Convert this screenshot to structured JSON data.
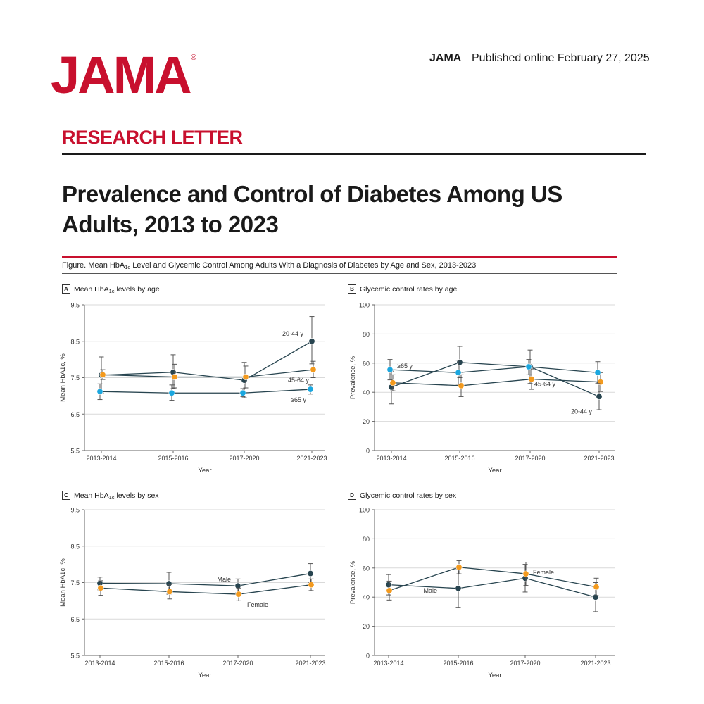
{
  "header": {
    "logo": "JAMA",
    "logo_mark": "®",
    "journal": "JAMA",
    "published": "Published online February 27, 2025"
  },
  "section_label": "RESEARCH LETTER",
  "article_title": "Prevalence and Control of Diabetes Among US Adults, 2013 to 2023",
  "figure_caption": {
    "prefix": "Figure. Mean HbA",
    "sub": "1c",
    "suffix": " Level and Glycemic Control Among Adults With a Diagnosis of Diabetes by Age and Sex, 2013-2023"
  },
  "colors": {
    "dark_teal": "#27444f",
    "blue": "#1ba7df",
    "orange": "#f39a1e",
    "axis": "#666666",
    "grid": "#d9d9d9"
  },
  "chart_data": [
    {
      "panel": "A",
      "type": "line",
      "title_prefix": "Mean HbA",
      "title_sub": "1c",
      "title_suffix": " levels by age",
      "xlabel": "Year",
      "ylabel": "Mean HbA1c, %",
      "ylim": [
        5.5,
        9.5
      ],
      "yticks": [
        5.5,
        6.5,
        7.5,
        8.5,
        9.5
      ],
      "tick_labels": [
        "5.5",
        "6.5",
        "7.5",
        "8.5",
        "9.5"
      ],
      "categories": [
        "2013-2014",
        "2015-2016",
        "2017-2020",
        "2021-2023"
      ],
      "series": [
        {
          "name": "20-44 y",
          "color": "#27444f",
          "values": [
            7.57,
            7.65,
            7.43,
            8.5
          ],
          "lower": [
            7.08,
            7.2,
            6.95,
            7.88
          ],
          "upper": [
            8.07,
            8.13,
            7.92,
            9.18
          ],
          "label": "20-44 y",
          "label_anchor": 3
        },
        {
          "name": "45-64 y",
          "color": "#f39a1e",
          "values": [
            7.58,
            7.52,
            7.52,
            7.72
          ],
          "lower": [
            7.45,
            7.22,
            7.22,
            7.5
          ],
          "upper": [
            7.72,
            7.87,
            7.82,
            7.95
          ],
          "label": "45-64 y",
          "label_anchor": 3
        },
        {
          "name": "≥65 y",
          "color": "#1ba7df",
          "values": [
            7.12,
            7.08,
            7.08,
            7.18
          ],
          "lower": [
            6.9,
            6.88,
            6.98,
            7.05
          ],
          "upper": [
            7.33,
            7.3,
            7.2,
            7.3
          ],
          "label": "≥65 y",
          "label_anchor": 3
        }
      ]
    },
    {
      "panel": "B",
      "type": "line",
      "title_prefix": "Glycemic control rates by age",
      "title_sub": "",
      "title_suffix": "",
      "xlabel": "Year",
      "ylabel": "Prevalence, %",
      "ylim": [
        0,
        100
      ],
      "yticks": [
        0,
        20,
        40,
        60,
        80,
        100
      ],
      "tick_labels": [
        "0",
        "20",
        "40",
        "60",
        "80",
        "100"
      ],
      "categories": [
        "2013-2014",
        "2015-2016",
        "2017-2020",
        "2021-2023"
      ],
      "series": [
        {
          "name": "20-44 y",
          "color": "#27444f",
          "values": [
            43.5,
            60.5,
            57.5,
            37
          ],
          "lower": [
            32,
            50,
            46,
            28
          ],
          "upper": [
            54.5,
            71.5,
            69,
            46.5
          ],
          "label": "20-44 y",
          "label_anchor": 3
        },
        {
          "name": "45-64 y",
          "color": "#f39a1e",
          "values": [
            46.5,
            44.5,
            49,
            47
          ],
          "lower": [
            41,
            37,
            42,
            40.5
          ],
          "upper": [
            52,
            52,
            56,
            53.5
          ],
          "label": "45-64 y",
          "label_anchor": 2
        },
        {
          "name": "≥65 y",
          "color": "#1ba7df",
          "values": [
            55.5,
            53.5,
            57.5,
            53.5
          ],
          "lower": [
            48.5,
            45.5,
            52,
            46
          ],
          "upper": [
            62.5,
            62,
            62.5,
            61
          ],
          "label": "≥65 y",
          "label_anchor": 0
        }
      ]
    },
    {
      "panel": "C",
      "type": "line",
      "title_prefix": "Mean HbA",
      "title_sub": "1c",
      "title_suffix": " levels by sex",
      "xlabel": "Year",
      "ylabel": "Mean HbA1c, %",
      "ylim": [
        5.5,
        9.5
      ],
      "yticks": [
        5.5,
        6.5,
        7.5,
        8.5,
        9.5
      ],
      "tick_labels": [
        "5.5",
        "6.5",
        "7.5",
        "8.5",
        "9.5"
      ],
      "categories": [
        "2013-2014",
        "2015-2016",
        "2017-2020",
        "2021-2023"
      ],
      "series": [
        {
          "name": "Male",
          "color": "#27444f",
          "values": [
            7.48,
            7.47,
            7.41,
            7.75
          ],
          "lower": [
            7.3,
            7.18,
            7.22,
            7.5
          ],
          "upper": [
            7.65,
            7.78,
            7.6,
            8.02
          ],
          "label": "Male",
          "label_anchor": 2
        },
        {
          "name": "Female",
          "color": "#f39a1e",
          "values": [
            7.35,
            7.25,
            7.18,
            7.44
          ],
          "lower": [
            7.15,
            7.05,
            7.0,
            7.28
          ],
          "upper": [
            7.55,
            7.45,
            7.35,
            7.6
          ],
          "label": "Female",
          "label_anchor": 2
        }
      ]
    },
    {
      "panel": "D",
      "type": "line",
      "title_prefix": "Glycemic control rates by sex",
      "title_sub": "",
      "title_suffix": "",
      "xlabel": "Year",
      "ylabel": "Prevalence, %",
      "ylim": [
        0,
        100
      ],
      "yticks": [
        0,
        20,
        40,
        60,
        80,
        100
      ],
      "tick_labels": [
        "0",
        "20",
        "40",
        "60",
        "80",
        "100"
      ],
      "categories": [
        "2013-2014",
        "2015-2016",
        "2017-2020",
        "2021-2023"
      ],
      "series": [
        {
          "name": "Male",
          "color": "#27444f",
          "values": [
            48.5,
            46,
            53,
            40
          ],
          "lower": [
            41.5,
            33,
            43.5,
            30
          ],
          "upper": [
            55.5,
            59,
            62.5,
            50
          ],
          "label": "Male",
          "label_anchor": 1
        },
        {
          "name": "Female",
          "color": "#f39a1e",
          "values": [
            44.5,
            60.5,
            56,
            47
          ],
          "lower": [
            38,
            56,
            48,
            41
          ],
          "upper": [
            51,
            65,
            64,
            53
          ],
          "label": "Female",
          "label_anchor": 2
        }
      ]
    }
  ]
}
